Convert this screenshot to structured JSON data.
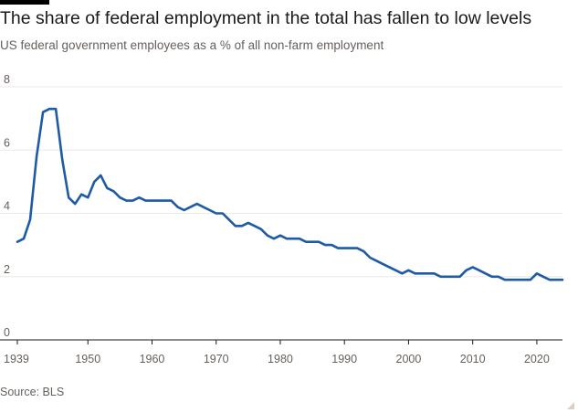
{
  "title": "The share of federal employment in the total has fallen to low levels",
  "subtitle": "US federal government employees as a % of all non-farm employment",
  "source": "Source: BLS",
  "colors": {
    "line": "#1f5aa6",
    "grid": "#ece8e4",
    "zero_line": "#1a1a1a",
    "text_muted": "#66605c"
  },
  "chart_data": {
    "type": "line",
    "title": "The share of federal employment in the total has fallen to low levels",
    "subtitle": "US federal government employees as a % of all non-farm employment",
    "xlabel": "",
    "ylabel": "",
    "xlim": [
      1939,
      2024
    ],
    "ylim": [
      0,
      8
    ],
    "x_ticks": [
      1939,
      1950,
      1960,
      1970,
      1980,
      1990,
      2000,
      2010,
      2020
    ],
    "y_ticks": [
      0,
      2,
      4,
      6,
      8
    ],
    "grid": true,
    "legend": "none",
    "x": [
      1939,
      1940,
      1941,
      1942,
      1943,
      1944,
      1945,
      1946,
      1947,
      1948,
      1949,
      1950,
      1951,
      1952,
      1953,
      1954,
      1955,
      1956,
      1957,
      1958,
      1959,
      1960,
      1961,
      1962,
      1963,
      1964,
      1965,
      1966,
      1967,
      1968,
      1969,
      1970,
      1971,
      1972,
      1973,
      1974,
      1975,
      1976,
      1977,
      1978,
      1979,
      1980,
      1981,
      1982,
      1983,
      1984,
      1985,
      1986,
      1987,
      1988,
      1989,
      1990,
      1991,
      1992,
      1993,
      1994,
      1995,
      1996,
      1997,
      1998,
      1999,
      2000,
      2001,
      2002,
      2003,
      2004,
      2005,
      2006,
      2007,
      2008,
      2009,
      2010,
      2011,
      2012,
      2013,
      2014,
      2015,
      2016,
      2017,
      2018,
      2019,
      2020,
      2021,
      2022,
      2023,
      2024
    ],
    "series": [
      {
        "values": [
          3.1,
          3.2,
          3.8,
          5.8,
          7.2,
          7.3,
          7.3,
          5.7,
          4.5,
          4.3,
          4.6,
          4.5,
          5.0,
          5.2,
          4.8,
          4.7,
          4.5,
          4.4,
          4.4,
          4.5,
          4.4,
          4.4,
          4.4,
          4.4,
          4.4,
          4.2,
          4.1,
          4.2,
          4.3,
          4.2,
          4.1,
          4.0,
          4.0,
          3.8,
          3.6,
          3.6,
          3.7,
          3.6,
          3.5,
          3.3,
          3.2,
          3.3,
          3.2,
          3.2,
          3.2,
          3.1,
          3.1,
          3.1,
          3.0,
          3.0,
          2.9,
          2.9,
          2.9,
          2.9,
          2.8,
          2.6,
          2.5,
          2.4,
          2.3,
          2.2,
          2.1,
          2.2,
          2.1,
          2.1,
          2.1,
          2.1,
          2.0,
          2.0,
          2.0,
          2.0,
          2.2,
          2.3,
          2.2,
          2.1,
          2.0,
          2.0,
          1.9,
          1.9,
          1.9,
          1.9,
          1.9,
          2.1,
          2.0,
          1.9,
          1.9,
          1.9
        ]
      }
    ]
  }
}
